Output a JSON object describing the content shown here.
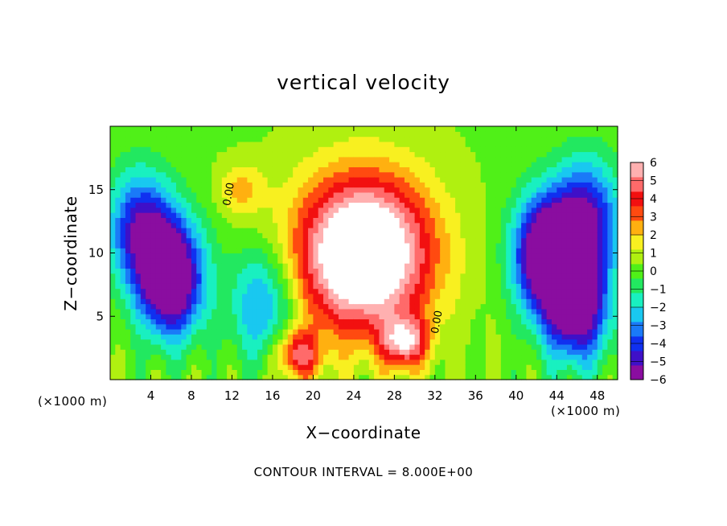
{
  "chart_data": {
    "type": "heatmap",
    "title": "vertical velocity",
    "xlabel": "X−coordinate",
    "ylabel": "Z−coordinate",
    "x_unit": "(×1000 m)",
    "y_unit": "(×1000 m)",
    "xlim": [
      0,
      50
    ],
    "ylim": [
      0,
      20
    ],
    "x_ticks": [
      4,
      8,
      12,
      16,
      20,
      24,
      28,
      32,
      36,
      40,
      44,
      48
    ],
    "y_ticks": [
      5,
      10,
      15
    ],
    "colorbar": {
      "range": [
        -6,
        6
      ],
      "ticks": [
        6,
        5,
        4,
        3,
        2,
        1,
        0,
        -1,
        -2,
        -3,
        -4,
        -5,
        -6
      ],
      "tick_labels": [
        "6",
        "5",
        "4",
        "3",
        "2",
        "1",
        "0",
        "−1",
        "−2",
        "−3",
        "−4",
        "−5",
        "−6"
      ],
      "colors": [
        "#8a0da0",
        "#3f10c8",
        "#1030f0",
        "#1a7af8",
        "#19c8f0",
        "#19f0c0",
        "#22e860",
        "#50f018",
        "#b0f010",
        "#f8f020",
        "#ffb010",
        "#ff4a10",
        "#f21010",
        "#ff6a6a",
        "#ffb0b0"
      ],
      "saturation_color": "#ffffff"
    },
    "features": [
      {
        "kind": "updraft",
        "x": 25,
        "z": 10,
        "peak": 9
      },
      {
        "kind": "updraft",
        "x": 18.5,
        "z": 2,
        "peak": 4.5
      },
      {
        "kind": "updraft",
        "x": 29,
        "z": 3,
        "peak": 5
      },
      {
        "kind": "updraft",
        "x": 13,
        "z": 15,
        "peak": 2
      },
      {
        "kind": "downdraft",
        "x": 6,
        "z": 8,
        "peak": -8
      },
      {
        "kind": "downdraft",
        "x": 3,
        "z": 12,
        "peak": -5
      },
      {
        "kind": "downdraft",
        "x": 43,
        "z": 10,
        "peak": -8
      },
      {
        "kind": "downdraft",
        "x": 46,
        "z": 6,
        "peak": -7
      },
      {
        "kind": "downdraft",
        "x": 47,
        "z": 13,
        "peak": -5
      },
      {
        "kind": "downdraft",
        "x": 15,
        "z": 6,
        "peak": -3.5
      }
    ],
    "contour_labels": [
      {
        "text": "0.00",
        "x": 12,
        "z": 14.6
      },
      {
        "text": "0.00",
        "x": 32.5,
        "z": 4.5
      }
    ]
  },
  "footnote": "CONTOUR INTERVAL =  8.000E+00"
}
